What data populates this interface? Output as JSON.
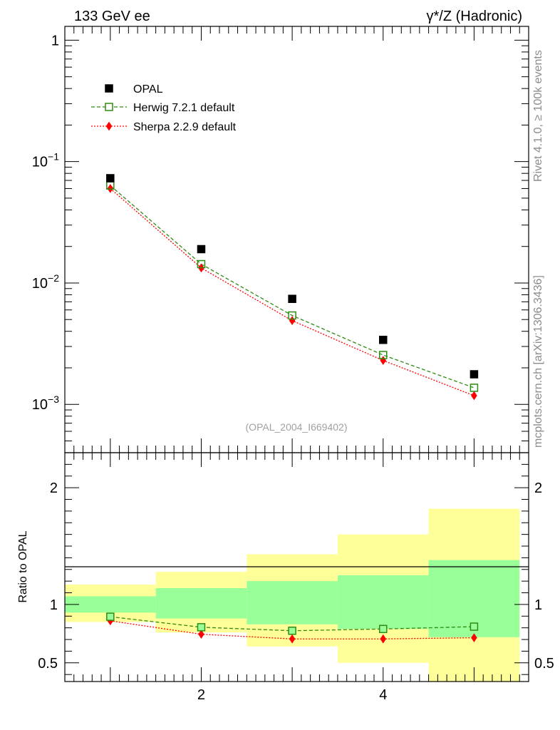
{
  "header": {
    "left_title": "133 GeV ee",
    "right_title": "γ*/Z (Hadronic)",
    "side_text_1": "Rivet 4.1.0, ≥ 100k events",
    "side_text_2": "mcplots.cern.ch [arXiv:1306.3436]",
    "analysis_id": "(OPAL_2004_I669402)"
  },
  "colors": {
    "data": "#000000",
    "herwig": "#2e8b12",
    "sherpa": "#ff0000",
    "band_inner": "#99ff99",
    "band_outer": "#ffff99"
  },
  "chart_data": [
    {
      "type": "scatter",
      "panel": "main",
      "yscale": "log",
      "xlim": [
        0.5,
        5.6
      ],
      "ylim": [
        0.0004,
        1.3
      ],
      "ytick_labels": [
        "1",
        "10⁻¹",
        "10⁻²",
        "10⁻³"
      ],
      "legend_position": "top-left",
      "x": [
        1,
        2,
        3,
        4,
        5
      ],
      "series": [
        {
          "name": "OPAL",
          "marker": "square",
          "values": [
            0.073,
            0.019,
            0.0074,
            0.0034,
            0.00177
          ]
        },
        {
          "name": "Herwig 7.2.1 default",
          "marker": "open-square",
          "line": "dashed",
          "values": [
            0.0635,
            0.0143,
            0.0054,
            0.00255,
            0.00137
          ]
        },
        {
          "name": "Sherpa 2.2.9 default",
          "marker": "diamond",
          "line": "dotted",
          "values": [
            0.06,
            0.0133,
            0.0049,
            0.0023,
            0.00118
          ]
        }
      ]
    },
    {
      "type": "line",
      "panel": "ratio",
      "ylabel": "Ratio to OPAL",
      "xlim": [
        0.5,
        5.6
      ],
      "ylim": [
        0.34,
        2.3
      ],
      "yticks": [
        0.5,
        1,
        2
      ],
      "ytick_labels": [
        "0.5",
        "1",
        "2"
      ],
      "xticks": [
        2,
        4
      ],
      "xtick_labels": [
        "2",
        "4"
      ],
      "x": [
        1,
        2,
        3,
        4,
        5
      ],
      "bins": [
        [
          0.5,
          1.5
        ],
        [
          1.5,
          2.5
        ],
        [
          2.5,
          3.5
        ],
        [
          3.5,
          4.5
        ],
        [
          4.5,
          5.5
        ]
      ],
      "band_inner": [
        [
          0.93,
          1.07
        ],
        [
          0.88,
          1.14
        ],
        [
          0.83,
          1.2
        ],
        [
          0.79,
          1.25
        ],
        [
          0.72,
          1.38
        ]
      ],
      "band_outer": [
        [
          0.85,
          1.17
        ],
        [
          0.76,
          1.28
        ],
        [
          0.64,
          1.43
        ],
        [
          0.5,
          1.6
        ],
        [
          0.3,
          1.82
        ]
      ],
      "series": [
        {
          "name": "Herwig 7.2.1 default",
          "values": [
            0.895,
            0.805,
            0.775,
            0.79,
            0.81
          ]
        },
        {
          "name": "Sherpa 2.2.9 default",
          "values": [
            0.86,
            0.745,
            0.705,
            0.705,
            0.715
          ]
        }
      ]
    }
  ]
}
